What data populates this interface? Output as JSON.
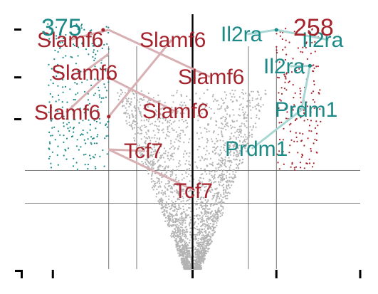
{
  "chart_data": {
    "type": "scatter",
    "title": "",
    "xlabel": "",
    "ylabel": "",
    "xlim": [
      -6,
      6
    ],
    "ylim": [
      0,
      9
    ],
    "x_ticks": [
      -5,
      0,
      3,
      6
    ],
    "y_ticks": [
      0,
      5,
      6.4,
      8
    ],
    "vertical_reference_lines": [
      -3,
      -2,
      0,
      2,
      3
    ],
    "horizontal_reference_lines": [
      3.3,
      2.2
    ],
    "colors": {
      "down": "#1b8a87",
      "up": "#a5232c",
      "neutral": "#b3b3b3",
      "zero_line": "#000000",
      "reference_line": "#555555",
      "connector_down": "#d8b0b4",
      "connector_up": "#a8d7d3"
    },
    "counts": {
      "down": "375",
      "up": "258"
    },
    "series": [
      {
        "group": "down",
        "points": [
          {
            "x": -3.2,
            "y": 8.0
          },
          {
            "x": -3.0,
            "y": 6.4
          },
          {
            "x": -3.0,
            "y": 5.1
          }
        ]
      },
      {
        "group": "up",
        "points": [
          {
            "x": 3.0,
            "y": 8.0
          },
          {
            "x": 4.2,
            "y": 6.8
          }
        ]
      }
    ],
    "annotations": [
      {
        "text": "Slamf6",
        "group": "up",
        "x": -3.0,
        "y": 8.0
      },
      {
        "text": "Slamf6",
        "group": "up",
        "x": -3.0,
        "y": 7.2
      },
      {
        "text": "Slamf6",
        "group": "up",
        "x": -3.2,
        "y": 6.4
      },
      {
        "text": "Slamf6",
        "group": "up",
        "x": -3.0,
        "y": 5.1
      },
      {
        "text": "Slamf6",
        "group": "up",
        "x": -3.0,
        "y": 8.0
      },
      {
        "text": "Slamf6",
        "group": "up",
        "x": -3.0,
        "y": 6.4
      },
      {
        "text": "Tcf7",
        "group": "up",
        "x": -3.0,
        "y": 4.0
      },
      {
        "text": "Tcf7",
        "group": "up",
        "x": -3.0,
        "y": 4.0
      },
      {
        "text": "Il2ra",
        "group": "down",
        "x": 3.0,
        "y": 8.0
      },
      {
        "text": "Il2ra",
        "group": "down",
        "x": 3.0,
        "y": 8.0
      },
      {
        "text": "Il2ra",
        "group": "down",
        "x": 4.2,
        "y": 6.8
      },
      {
        "text": "Prdm1",
        "group": "down",
        "x": 4.2,
        "y": 6.8
      },
      {
        "text": "Prdm1",
        "group": "down",
        "x": 4.0,
        "y": 5.4
      }
    ]
  }
}
